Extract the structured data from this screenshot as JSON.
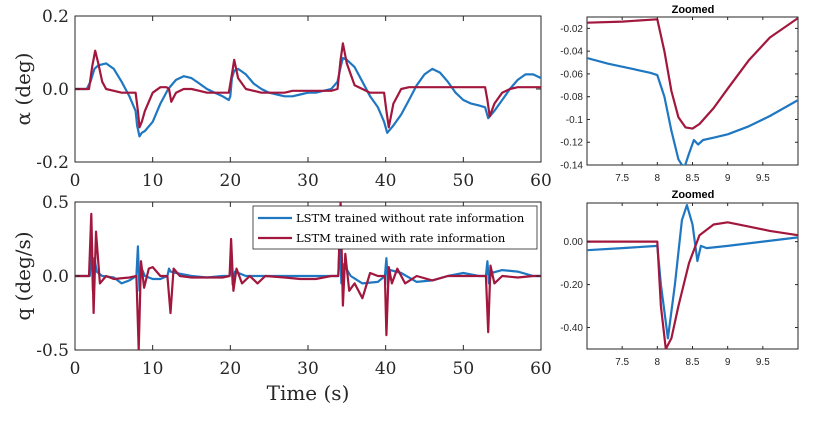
{
  "figure": {
    "colors": {
      "series1": "#1f77c2",
      "series2": "#a2173d",
      "axis": "#262626"
    }
  },
  "chart_data": [
    {
      "id": "alpha_main",
      "type": "line",
      "ylabel": "α (deg)",
      "xlabel": "",
      "xlim": [
        0,
        60
      ],
      "ylim": [
        -0.2,
        0.2
      ],
      "xticks": [
        0,
        10,
        20,
        30,
        40,
        50,
        60
      ],
      "xtick_labels": [
        "0",
        "10",
        "20",
        "30",
        "40",
        "50",
        "60"
      ],
      "yticks": [
        -0.2,
        0,
        0.2
      ],
      "ytick_labels": [
        "-0.2",
        "0.0",
        "0.2"
      ],
      "series": [
        {
          "name": "LSTM trained without rate information",
          "x": [
            0,
            1.5,
            2,
            2.5,
            3,
            4,
            5,
            6,
            7,
            7.8,
            8,
            8.3,
            8.6,
            9,
            10,
            11,
            12,
            13,
            14,
            15,
            16,
            17,
            18,
            19,
            19.8,
            20,
            20.2,
            20.5,
            21,
            22,
            23,
            24,
            25,
            26,
            27,
            28,
            29,
            30,
            31,
            32,
            33,
            33.8,
            34.2,
            34.5,
            35,
            36,
            37,
            38,
            39,
            39.8,
            40.2,
            40.6,
            41,
            42,
            43,
            44,
            45,
            46,
            47,
            48,
            49,
            50,
            51,
            52,
            52.8,
            53.2,
            53.6,
            54,
            55,
            56,
            57,
            58,
            59,
            60
          ],
          "values": [
            0.0,
            0.0,
            0.02,
            0.055,
            0.065,
            0.07,
            0.055,
            0.02,
            -0.02,
            -0.06,
            -0.1,
            -0.13,
            -0.12,
            -0.115,
            -0.09,
            -0.04,
            0.0,
            0.025,
            0.035,
            0.03,
            0.015,
            0.0,
            -0.01,
            -0.02,
            -0.03,
            -0.02,
            0.03,
            0.05,
            0.055,
            0.04,
            0.015,
            0.0,
            -0.01,
            -0.015,
            -0.02,
            -0.02,
            -0.015,
            -0.01,
            -0.01,
            -0.005,
            0.0,
            0.02,
            0.06,
            0.085,
            0.08,
            0.06,
            0.02,
            -0.02,
            -0.05,
            -0.09,
            -0.12,
            -0.11,
            -0.1,
            -0.07,
            -0.03,
            0.01,
            0.04,
            0.055,
            0.045,
            0.02,
            -0.01,
            -0.03,
            -0.04,
            -0.045,
            -0.05,
            -0.08,
            -0.07,
            -0.06,
            -0.03,
            0.0,
            0.025,
            0.04,
            0.04,
            0.03
          ]
        },
        {
          "name": "LSTM trained with rate information",
          "x": [
            0,
            1.8,
            2.2,
            2.6,
            3,
            3.5,
            4,
            5,
            6,
            7,
            7.8,
            8.1,
            8.3,
            8.6,
            9,
            10,
            11,
            11.8,
            12.1,
            12.4,
            13,
            14,
            15,
            16,
            17,
            18,
            19,
            19.8,
            20.2,
            20.5,
            21,
            22,
            23,
            24,
            25,
            26,
            27,
            28,
            29,
            30,
            31,
            32,
            33,
            33.8,
            34.2,
            34.5,
            35,
            36,
            37,
            38,
            39,
            39.8,
            40.1,
            40.4,
            41,
            42,
            43,
            44,
            45,
            46,
            47,
            48,
            49,
            50,
            51,
            52,
            52.8,
            53.1,
            53.4,
            54,
            55,
            56,
            57,
            58,
            59,
            60
          ],
          "values": [
            0.0,
            0.0,
            0.06,
            0.105,
            0.07,
            0.02,
            0.0,
            -0.005,
            -0.01,
            -0.01,
            -0.01,
            -0.06,
            -0.105,
            -0.09,
            -0.06,
            -0.01,
            0.005,
            0.005,
            0.0,
            -0.035,
            -0.01,
            0.0,
            0.0,
            -0.005,
            -0.01,
            -0.01,
            -0.01,
            -0.01,
            0.04,
            0.08,
            0.03,
            0.0,
            -0.005,
            -0.01,
            -0.01,
            -0.01,
            -0.01,
            -0.005,
            -0.005,
            -0.005,
            -0.005,
            -0.005,
            -0.005,
            0.0,
            0.08,
            0.125,
            0.07,
            0.01,
            0.0,
            -0.01,
            -0.01,
            -0.01,
            -0.06,
            -0.105,
            -0.04,
            0.0,
            0.005,
            0.005,
            0.005,
            0.005,
            0.005,
            0.005,
            0.005,
            0.005,
            0.005,
            0.005,
            0.005,
            -0.03,
            -0.075,
            -0.04,
            -0.01,
            0.0,
            0.005,
            0.005,
            0.005,
            0.005
          ]
        }
      ]
    },
    {
      "id": "alpha_zoom",
      "type": "line",
      "title": "Zoomed",
      "xlim": [
        7,
        10
      ],
      "ylim": [
        -0.14,
        -0.01
      ],
      "xticks": [
        7.5,
        8,
        8.5,
        9,
        9.5
      ],
      "xtick_labels": [
        "7.5",
        "8",
        "8.5",
        "9",
        "9.5"
      ],
      "yticks": [
        -0.14,
        -0.12,
        -0.1,
        -0.08,
        -0.06,
        -0.04,
        -0.02
      ],
      "ytick_labels": [
        "-0.14",
        "-0.12",
        "-0.1",
        "-0.08",
        "-0.06",
        "-0.04",
        "-0.02"
      ],
      "series": [
        {
          "name": "LSTM trained without rate information",
          "x": [
            7,
            7.3,
            7.6,
            7.9,
            8.0,
            8.1,
            8.2,
            8.3,
            8.38,
            8.45,
            8.52,
            8.58,
            8.65,
            8.8,
            9.0,
            9.3,
            9.6,
            10.0
          ],
          "values": [
            -0.046,
            -0.051,
            -0.055,
            -0.059,
            -0.061,
            -0.08,
            -0.11,
            -0.135,
            -0.143,
            -0.13,
            -0.118,
            -0.122,
            -0.118,
            -0.116,
            -0.113,
            -0.106,
            -0.097,
            -0.083
          ]
        },
        {
          "name": "LSTM trained with rate information",
          "x": [
            7,
            7.5,
            8.0,
            8.1,
            8.2,
            8.3,
            8.4,
            8.5,
            8.6,
            8.8,
            9.0,
            9.3,
            9.6,
            10.0
          ],
          "values": [
            -0.015,
            -0.014,
            -0.012,
            -0.04,
            -0.075,
            -0.098,
            -0.107,
            -0.108,
            -0.104,
            -0.09,
            -0.073,
            -0.048,
            -0.028,
            -0.011
          ]
        }
      ]
    },
    {
      "id": "q_main",
      "type": "line",
      "ylabel": "q (deg/s)",
      "xlabel": "Time (s)",
      "xlim": [
        0,
        60
      ],
      "ylim": [
        -0.5,
        0.5
      ],
      "xticks": [
        0,
        10,
        20,
        30,
        40,
        50,
        60
      ],
      "xtick_labels": [
        "0",
        "10",
        "20",
        "30",
        "40",
        "50",
        "60"
      ],
      "yticks": [
        -0.5,
        0,
        0.5
      ],
      "ytick_labels": [
        "-0.5",
        "0.0",
        "0.5"
      ],
      "legend": {
        "position": "top-right",
        "entries": [
          "LSTM trained without rate information",
          "LSTM trained with rate information"
        ]
      },
      "series": [
        {
          "name": "LSTM trained without rate information",
          "x": [
            0,
            1.9,
            2.1,
            2.3,
            2.5,
            2.8,
            3.5,
            5,
            6,
            7,
            7.9,
            8.1,
            8.3,
            8.5,
            9,
            10,
            11,
            11.9,
            12.1,
            12.3,
            13,
            15,
            17,
            19,
            19.9,
            20.1,
            20.3,
            20.6,
            22,
            25,
            28,
            31,
            33.9,
            34.1,
            34.3,
            34.6,
            35.5,
            37,
            39,
            39.9,
            40.1,
            40.3,
            40.6,
            42,
            44,
            46,
            48,
            50,
            52,
            52.9,
            53.1,
            53.3,
            53.6,
            55,
            57,
            59,
            60
          ],
          "values": [
            0.0,
            0.0,
            0.25,
            -0.1,
            0.12,
            0.03,
            0.0,
            -0.01,
            -0.05,
            -0.03,
            0.0,
            0.2,
            -0.1,
            0.06,
            0.0,
            -0.02,
            -0.02,
            0.0,
            0.05,
            0.03,
            0.02,
            0.0,
            -0.01,
            0.0,
            0.0,
            0.12,
            -0.06,
            0.03,
            0.0,
            0.0,
            0.0,
            0.0,
            0.0,
            0.25,
            -0.05,
            0.08,
            0.0,
            -0.05,
            -0.04,
            0.0,
            0.12,
            -0.06,
            0.04,
            0.02,
            -0.04,
            -0.03,
            0.0,
            0.02,
            0.0,
            0.0,
            0.1,
            -0.05,
            0.02,
            0.04,
            0.03,
            0.0,
            0.0
          ]
        },
        {
          "name": "LSTM trained with rate information",
          "x": [
            0,
            1.8,
            2.1,
            2.4,
            2.7,
            3.2,
            4,
            5,
            7,
            7.9,
            8.2,
            8.5,
            8.9,
            9.5,
            10,
            11,
            11.9,
            12.3,
            12.7,
            13.5,
            15,
            17,
            19,
            19.9,
            20.1,
            20.4,
            20.8,
            21.5,
            22.5,
            23.5,
            24.5,
            27,
            29,
            31,
            33,
            33.9,
            34.2,
            34.5,
            34.8,
            35.3,
            36,
            37,
            38,
            39,
            39.9,
            40.1,
            40.4,
            40.8,
            41.5,
            42.5,
            44,
            46,
            48,
            50,
            52,
            52.9,
            53.2,
            53.5,
            54,
            55,
            57,
            59,
            60
          ],
          "values": [
            0.0,
            0.0,
            0.42,
            -0.25,
            0.3,
            -0.05,
            0.0,
            -0.02,
            -0.01,
            0.0,
            -0.5,
            0.1,
            -0.08,
            0.05,
            0.06,
            0.0,
            0.0,
            -0.25,
            0.05,
            0.0,
            -0.01,
            -0.01,
            -0.01,
            0.0,
            0.25,
            -0.1,
            0.05,
            -0.05,
            0.0,
            -0.05,
            0.0,
            -0.01,
            -0.02,
            -0.02,
            0.0,
            0.0,
            0.5,
            -0.2,
            0.15,
            -0.1,
            -0.05,
            -0.15,
            0.02,
            0.0,
            0.0,
            -0.4,
            0.06,
            -0.05,
            0.05,
            -0.05,
            0.0,
            -0.03,
            0.0,
            0.0,
            0.0,
            0.0,
            -0.38,
            0.07,
            -0.05,
            0.0,
            -0.01,
            0.0,
            0.0
          ]
        }
      ]
    },
    {
      "id": "q_zoom",
      "type": "line",
      "title": "Zoomed",
      "xlim": [
        7,
        10
      ],
      "ylim": [
        -0.5,
        0.18
      ],
      "xticks": [
        7.5,
        8,
        8.5,
        9,
        9.5
      ],
      "xtick_labels": [
        "7.5",
        "8",
        "8.5",
        "9",
        "9.5"
      ],
      "yticks": [
        -0.4,
        -0.2,
        0
      ],
      "ytick_labels": [
        "-0.40",
        "-0.20",
        "0.00"
      ],
      "series": [
        {
          "name": "LSTM trained without rate information",
          "x": [
            7,
            7.5,
            8.0,
            8.05,
            8.15,
            8.25,
            8.35,
            8.42,
            8.5,
            8.57,
            8.62,
            8.7,
            9.0,
            9.5,
            10.0
          ],
          "values": [
            -0.04,
            -0.03,
            -0.02,
            -0.2,
            -0.45,
            -0.2,
            0.1,
            0.17,
            0.08,
            -0.09,
            -0.02,
            -0.03,
            -0.02,
            0.0,
            0.02
          ]
        },
        {
          "name": "LSTM trained with rate information",
          "x": [
            7,
            7.5,
            8.0,
            8.05,
            8.12,
            8.2,
            8.3,
            8.45,
            8.6,
            8.8,
            9.0,
            9.3,
            9.6,
            10.0
          ],
          "values": [
            0.0,
            0.0,
            0.0,
            -0.3,
            -0.5,
            -0.45,
            -0.3,
            -0.1,
            0.03,
            0.08,
            0.09,
            0.07,
            0.05,
            0.03
          ]
        }
      ]
    }
  ]
}
